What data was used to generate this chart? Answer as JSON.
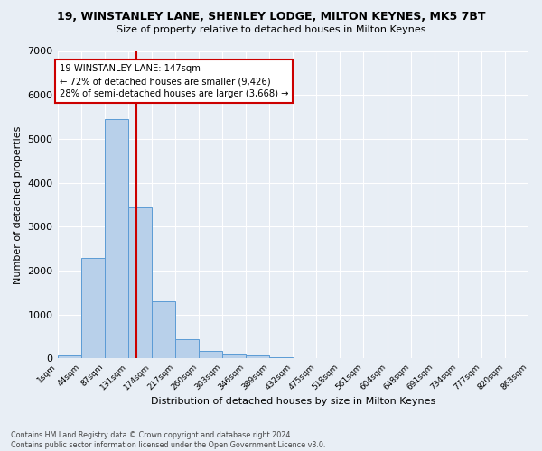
{
  "title": "19, WINSTANLEY LANE, SHENLEY LODGE, MILTON KEYNES, MK5 7BT",
  "subtitle": "Size of property relative to detached houses in Milton Keynes",
  "xlabel": "Distribution of detached houses by size in Milton Keynes",
  "ylabel": "Number of detached properties",
  "bar_values": [
    75,
    2280,
    5450,
    3440,
    1310,
    440,
    165,
    100,
    65,
    35,
    0,
    0,
    0,
    0,
    0,
    0,
    0,
    0,
    0,
    0
  ],
  "bin_labels": [
    "1sqm",
    "44sqm",
    "87sqm",
    "131sqm",
    "174sqm",
    "217sqm",
    "260sqm",
    "303sqm",
    "346sqm",
    "389sqm",
    "432sqm",
    "475sqm",
    "518sqm",
    "561sqm",
    "604sqm",
    "648sqm",
    "691sqm",
    "734sqm",
    "777sqm",
    "820sqm",
    "863sqm"
  ],
  "bar_color": "#b8d0ea",
  "bar_edge_color": "#5b9bd5",
  "ylim": [
    0,
    7000
  ],
  "yticks": [
    0,
    1000,
    2000,
    3000,
    4000,
    5000,
    6000,
    7000
  ],
  "annotation_text": "19 WINSTANLEY LANE: 147sqm\n← 72% of detached houses are smaller (9,426)\n28% of semi-detached houses are larger (3,668) →",
  "annotation_box_color": "#ffffff",
  "annotation_box_edge_color": "#cc0000",
  "footer_text": "Contains HM Land Registry data © Crown copyright and database right 2024.\nContains public sector information licensed under the Open Government Licence v3.0.",
  "background_color": "#e8eef5",
  "grid_color": "#ffffff",
  "vline_color": "#cc0000"
}
